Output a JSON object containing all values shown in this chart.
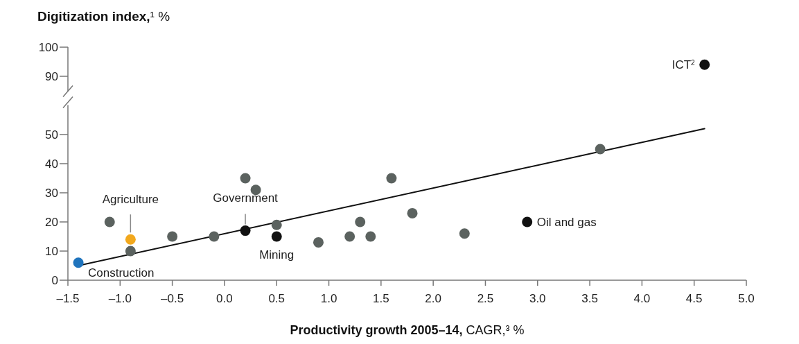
{
  "chart_data": [
    {
      "type": "scatter",
      "title": "Digitization index,¹ %",
      "tick_labels": "y",
      "xlim": [
        -1.5,
        5.0
      ],
      "ylim": [
        90,
        100
      ],
      "yticks": [
        90,
        100
      ],
      "marker": "circle",
      "grid": false,
      "series": [
        {
          "color": "#111111",
          "x": [
            4.6
          ],
          "values": [
            94
          ]
        }
      ],
      "annotations": [
        {
          "text": "ICT$^{2}$",
          "x": 4.6,
          "y": 94
        }
      ]
    },
    {
      "type": "scatter",
      "xlabel": "Productivity growth 2005–14, CAGR,³ %",
      "xlim": [
        -1.5,
        5.0
      ],
      "xticks": [
        {
          "value": -1.5,
          "label": "–1.5"
        },
        {
          "value": -1.0,
          "label": "–1.0"
        },
        {
          "value": -0.5,
          "label": "–0.5"
        },
        {
          "value": 0,
          "label": "0.0"
        },
        {
          "value": 0.5,
          "label": "0.5"
        },
        {
          "value": 1,
          "label": "1.0"
        },
        {
          "value": 1.5,
          "label": "1.5"
        },
        {
          "value": 2,
          "label": "2.0"
        },
        {
          "value": 2.5,
          "label": "2.5"
        },
        {
          "value": 3,
          "label": "3.0"
        },
        {
          "value": 3.5,
          "label": "3.5"
        },
        {
          "value": 4,
          "label": "4.0"
        },
        {
          "value": 4.5,
          "label": "4.5"
        },
        {
          "value": 5,
          "label": "5.0"
        }
      ],
      "ylim": [
        0,
        55
      ],
      "yticks": [
        0,
        10,
        20,
        30,
        40,
        50
      ],
      "marker": "circle",
      "grid": false,
      "series": [
        {
          "color": "#5b625f",
          "x": [
            -1.1,
            -0.9,
            -0.5,
            -0.1,
            0.2,
            0.3,
            0.5,
            0.9,
            1.2,
            1.3,
            1.4,
            1.6,
            1.8,
            2.3,
            3.6
          ],
          "values": [
            20,
            10,
            15,
            15,
            35,
            31,
            19,
            13,
            15,
            20,
            15,
            35,
            23,
            16,
            45
          ]
        },
        {
          "color": "#111111",
          "x": [
            0.2,
            0.5,
            2.9
          ],
          "values": [
            17,
            15,
            20
          ]
        },
        {
          "color": "#f2a81d",
          "x": [
            -0.9
          ],
          "values": [
            14
          ]
        },
        {
          "color": "#1f74bd",
          "x": [
            -1.4
          ],
          "values": [
            6
          ]
        },
        {
          "type": "line",
          "color": "#111111",
          "marker": "none",
          "x": [
            -1.4,
            4.6
          ],
          "values": [
            5,
            52
          ]
        }
      ],
      "annotations": [
        {
          "text": "Agriculture",
          "x": -0.9,
          "y": 14
        },
        {
          "text": "Government",
          "x": 0.2,
          "y": 17
        },
        {
          "text": "Mining",
          "x": 0.5,
          "y": 15
        },
        {
          "text": "Oil and gas",
          "x": 2.9,
          "y": 20
        },
        {
          "text": "Construction",
          "x": -1.4,
          "y": 6
        }
      ]
    }
  ]
}
